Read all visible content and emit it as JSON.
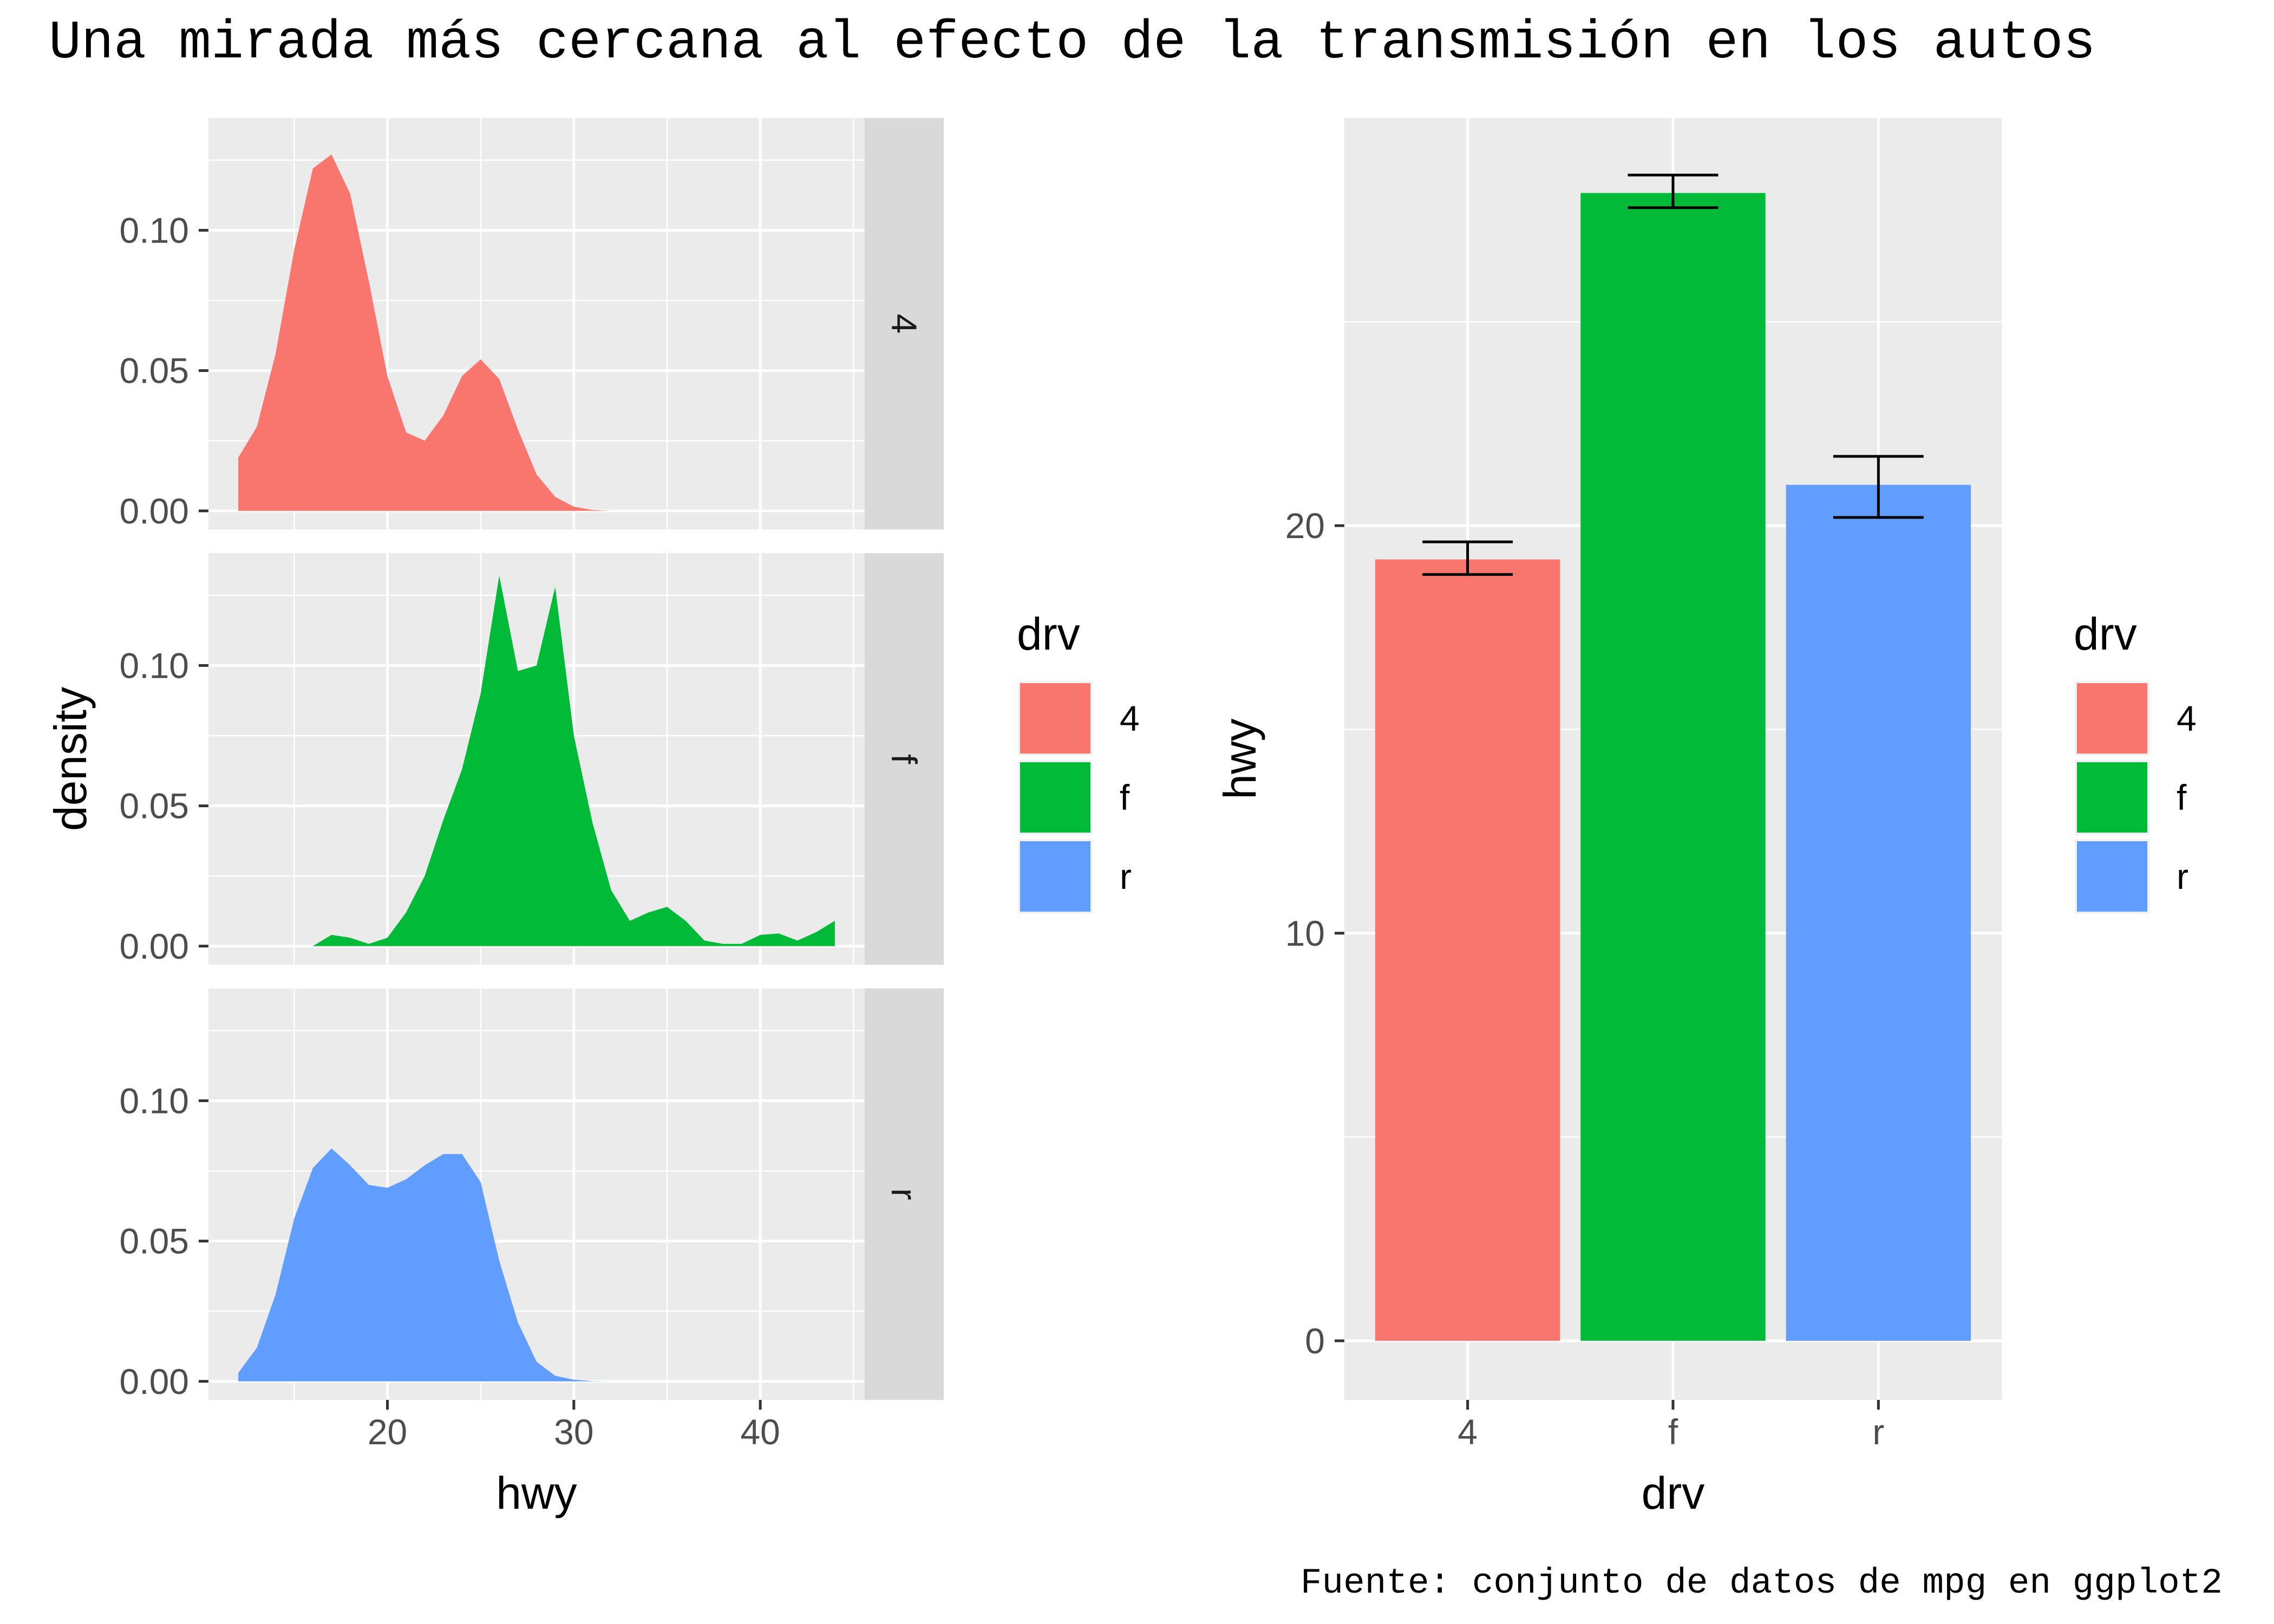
{
  "title": "Una mirada más cercana al efecto de la transmisión en los autos",
  "caption": "Fuente: conjunto de datos de mpg en ggplot2",
  "colors": {
    "panel_bg": "#EBEBEB",
    "grid": "#FFFFFF",
    "strip_bg": "#D9D9D9",
    "tick_text": "#4D4D4D",
    "errorbar": "#000000"
  },
  "chart_data": [
    {
      "type": "area",
      "subtype": "faceted_density",
      "xlabel": "hwy",
      "ylabel": "density",
      "xlim": [
        10.4,
        45.6
      ],
      "ylim": [
        -0.0066,
        0.14
      ],
      "x_ticks": [
        20,
        30,
        40
      ],
      "x_minor_ticks": [
        15,
        25,
        35,
        45
      ],
      "y_ticks": [
        0.0,
        0.05,
        0.1
      ],
      "y_tick_labels": [
        "0.00",
        "0.05",
        "0.10"
      ],
      "y_minor_ticks": [
        0.025,
        0.075,
        0.125
      ],
      "grid": true,
      "legend": {
        "title": "drv",
        "position": "right",
        "entries": [
          "4",
          "f",
          "r"
        ]
      },
      "series": [
        {
          "name": "4",
          "color": "#F8766D",
          "points": [
            [
              12,
              0.019
            ],
            [
              13,
              0.03
            ],
            [
              14,
              0.056
            ],
            [
              15,
              0.093
            ],
            [
              16,
              0.122
            ],
            [
              17,
              0.127
            ],
            [
              18,
              0.113
            ],
            [
              19,
              0.082
            ],
            [
              20,
              0.048
            ],
            [
              21,
              0.028
            ],
            [
              22,
              0.025
            ],
            [
              23,
              0.034
            ],
            [
              24,
              0.048
            ],
            [
              25,
              0.054
            ],
            [
              26,
              0.047
            ],
            [
              27,
              0.029
            ],
            [
              28,
              0.013
            ],
            [
              29,
              0.005
            ],
            [
              30,
              0.0015
            ],
            [
              31,
              0.0003
            ],
            [
              32,
              0.0
            ]
          ]
        },
        {
          "name": "f",
          "color": "#00BA38",
          "points": [
            [
              16,
              0.0
            ],
            [
              17,
              0.004
            ],
            [
              18,
              0.003
            ],
            [
              19,
              0.0008
            ],
            [
              20,
              0.003
            ],
            [
              21,
              0.012
            ],
            [
              22,
              0.025
            ],
            [
              23,
              0.045
            ],
            [
              24,
              0.063
            ],
            [
              25,
              0.09
            ],
            [
              26,
              0.132
            ],
            [
              27,
              0.098
            ],
            [
              28,
              0.1
            ],
            [
              29,
              0.128
            ],
            [
              30,
              0.075
            ],
            [
              31,
              0.044
            ],
            [
              32,
              0.02
            ],
            [
              33,
              0.009
            ],
            [
              34,
              0.012
            ],
            [
              35,
              0.014
            ],
            [
              36,
              0.009
            ],
            [
              37,
              0.002
            ],
            [
              38,
              0.0008
            ],
            [
              39,
              0.0008
            ],
            [
              40,
              0.004
            ],
            [
              41,
              0.0045
            ],
            [
              42,
              0.002
            ],
            [
              43,
              0.005
            ],
            [
              44,
              0.009
            ]
          ]
        },
        {
          "name": "r",
          "color": "#619CFF",
          "points": [
            [
              12,
              0.003
            ],
            [
              13,
              0.012
            ],
            [
              14,
              0.031
            ],
            [
              15,
              0.058
            ],
            [
              16,
              0.076
            ],
            [
              17,
              0.083
            ],
            [
              18,
              0.077
            ],
            [
              19,
              0.07
            ],
            [
              20,
              0.069
            ],
            [
              21,
              0.072
            ],
            [
              22,
              0.077
            ],
            [
              23,
              0.081
            ],
            [
              24,
              0.081
            ],
            [
              25,
              0.071
            ],
            [
              26,
              0.043
            ],
            [
              27,
              0.021
            ],
            [
              28,
              0.007
            ],
            [
              29,
              0.002
            ],
            [
              30,
              0.0006
            ],
            [
              31,
              0.0001
            ],
            [
              32,
              0.0
            ]
          ]
        }
      ]
    },
    {
      "type": "bar",
      "xlabel": "drv",
      "ylabel": "hwy",
      "categories": [
        "4",
        "f",
        "r"
      ],
      "values": [
        19.17,
        28.16,
        21.0
      ],
      "error_bars": [
        {
          "low": 18.8,
          "high": 19.6
        },
        {
          "low": 27.8,
          "high": 28.6
        },
        {
          "low": 20.2,
          "high": 21.7
        }
      ],
      "colors": [
        "#F8766D",
        "#00BA38",
        "#619CFF"
      ],
      "ylim": [
        -1.45,
        30.0
      ],
      "y_ticks": [
        0,
        10,
        20
      ],
      "y_minor_ticks": [
        5,
        15,
        25
      ],
      "grid": true,
      "legend": {
        "title": "drv",
        "position": "right",
        "entries": [
          "4",
          "f",
          "r"
        ]
      }
    }
  ]
}
